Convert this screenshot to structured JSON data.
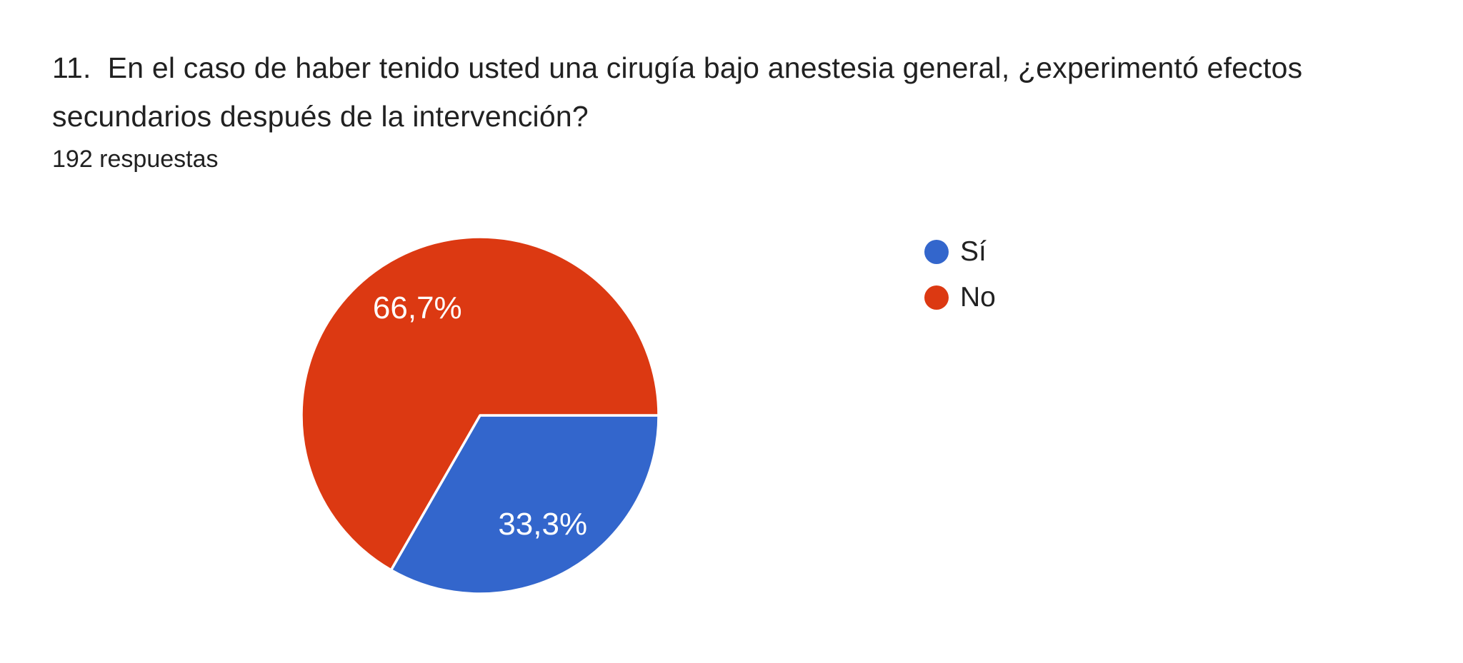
{
  "question": {
    "title": "11.  En el caso de haber tenido usted una cirugía bajo anestesia general, ¿experimentó efectos secundarios después de la intervención?",
    "responses_label": "192 respuestas",
    "responses_count": 192
  },
  "chart_data": {
    "type": "pie",
    "title": "11.  En el caso de haber tenido usted una cirugía bajo anestesia general, ¿experimentó efectos secundarios después de la intervención?",
    "subtitle": "192 respuestas",
    "legend_position": "right",
    "start_angle_deg": 0,
    "direction": "clockwise",
    "label_color": "#ffffff",
    "slice_gap_color": "#ffffff",
    "slices": [
      {
        "label": "Sí",
        "value_percent": 33.3,
        "display_value": "33,3%",
        "color": "#3366CC"
      },
      {
        "label": "No",
        "value_percent": 66.7,
        "display_value": "66,7%",
        "color": "#DC3912"
      }
    ]
  }
}
